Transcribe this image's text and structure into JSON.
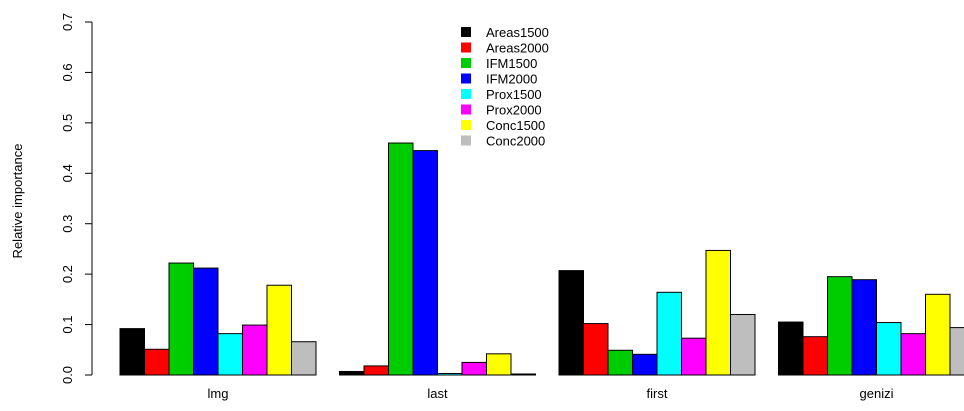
{
  "chart_data": {
    "type": "bar",
    "title": "",
    "xlabel": "",
    "ylabel": "Relative importance",
    "ylim": [
      0,
      0.7
    ],
    "yticks": [
      "0.0",
      "0.1",
      "0.2",
      "0.3",
      "0.4",
      "0.5",
      "0.6",
      "0.7"
    ],
    "categories": [
      "lmg",
      "last",
      "first",
      "genizi"
    ],
    "grid": false,
    "legend_position": "top-center",
    "series": [
      {
        "name": "Areas1500",
        "color": "#000000",
        "values": [
          0.092,
          0.007,
          0.207,
          0.105
        ]
      },
      {
        "name": "Areas2000",
        "color": "#ff0000",
        "values": [
          0.051,
          0.018,
          0.102,
          0.076
        ]
      },
      {
        "name": "IFM1500",
        "color": "#00cd00",
        "values": [
          0.222,
          0.46,
          0.049,
          0.195
        ]
      },
      {
        "name": "IFM2000",
        "color": "#0000ff",
        "values": [
          0.212,
          0.445,
          0.041,
          0.189
        ]
      },
      {
        "name": "Prox1500",
        "color": "#00ffff",
        "values": [
          0.082,
          0.003,
          0.164,
          0.104
        ]
      },
      {
        "name": "Prox2000",
        "color": "#ff00ff",
        "values": [
          0.099,
          0.025,
          0.073,
          0.082
        ]
      },
      {
        "name": "Conc1500",
        "color": "#ffff00",
        "values": [
          0.178,
          0.042,
          0.247,
          0.16
        ]
      },
      {
        "name": "Conc2000",
        "color": "#bebebe",
        "values": [
          0.066,
          0.002,
          0.12,
          0.094
        ]
      }
    ]
  }
}
